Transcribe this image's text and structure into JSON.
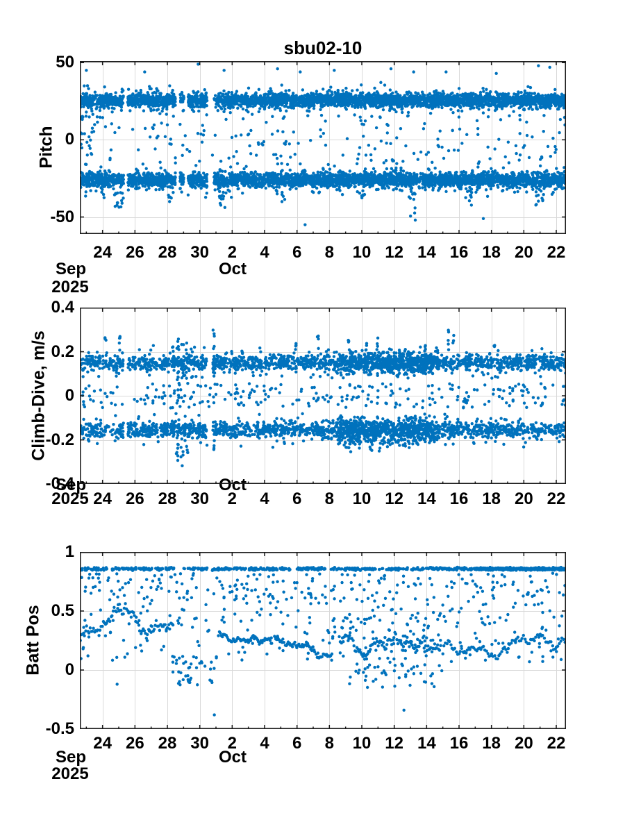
{
  "figure_title": "sbu02-10",
  "colors": {
    "marker": "#0072BD",
    "axis": "#1a1a1a",
    "grid": "#d9d9d9",
    "text": "#000000",
    "background": "#ffffff"
  },
  "x_axis": {
    "domain_days": [
      0.6,
      30.6
    ],
    "day0_date": "Sep 22",
    "major_ticks": [
      {
        "day": 2,
        "label": "24"
      },
      {
        "day": 4,
        "label": "26"
      },
      {
        "day": 6,
        "label": "28"
      },
      {
        "day": 8,
        "label": "30"
      },
      {
        "day": 10,
        "label": "2"
      },
      {
        "day": 12,
        "label": "4"
      },
      {
        "day": 14,
        "label": "6"
      },
      {
        "day": 16,
        "label": "8"
      },
      {
        "day": 18,
        "label": "10"
      },
      {
        "day": 20,
        "label": "12"
      },
      {
        "day": 22,
        "label": "14"
      },
      {
        "day": 24,
        "label": "16"
      },
      {
        "day": 26,
        "label": "18"
      },
      {
        "day": 28,
        "label": "20"
      },
      {
        "day": 30,
        "label": "22"
      }
    ],
    "minor_tick_days": [
      1,
      3,
      5,
      7,
      9,
      11,
      13,
      15,
      17,
      19,
      21,
      23,
      25,
      27,
      29
    ],
    "month_labels": [
      {
        "text": "Sep"
      },
      {
        "text": "Oct"
      }
    ],
    "year_label": "2025"
  },
  "chart_data": [
    {
      "type": "scatter",
      "title": "sbu02-10",
      "ylabel": "Pitch",
      "ylim": [
        -61,
        51
      ],
      "yticks": [
        {
          "v": 50,
          "label": "50"
        },
        {
          "v": 0,
          "label": "0"
        },
        {
          "v": -50,
          "label": "-50"
        }
      ],
      "grid": true,
      "marker_radius": 2.2,
      "series": [
        {
          "kind": "band",
          "seed": 11,
          "n": 2900,
          "x": [
            0.6,
            30.6
          ],
          "yc": 25.5,
          "ys": 2.1,
          "clip": [
            19,
            33
          ],
          "gaps": [
            [
              3.3,
              3.55
            ],
            [
              6.5,
              6.78
            ],
            [
              7.02,
              7.28
            ],
            [
              8.45,
              8.88
            ]
          ]
        },
        {
          "kind": "band",
          "seed": 12,
          "n": 650,
          "x": [
            0.6,
            30.6
          ],
          "yc": 25.5,
          "ys": 4.2,
          "clip": [
            13,
            41
          ],
          "gaps": [
            [
              3.3,
              3.55
            ],
            [
              6.5,
              6.78
            ],
            [
              7.02,
              7.28
            ],
            [
              8.45,
              8.88
            ]
          ]
        },
        {
          "kind": "band",
          "seed": 13,
          "n": 2900,
          "x": [
            0.6,
            30.6
          ],
          "yc": -26,
          "ys": 2.1,
          "clip": [
            -33.5,
            -19
          ],
          "gaps": [
            [
              3.3,
              3.55
            ],
            [
              6.5,
              6.78
            ],
            [
              7.02,
              7.28
            ],
            [
              8.45,
              8.88
            ]
          ]
        },
        {
          "kind": "band",
          "seed": 14,
          "n": 650,
          "x": [
            0.6,
            30.6
          ],
          "yc": -26,
          "ys": 4.2,
          "clip": [
            -42,
            -13
          ],
          "gaps": [
            [
              3.3,
              3.55
            ],
            [
              6.5,
              6.78
            ],
            [
              7.02,
              7.28
            ],
            [
              8.45,
              8.88
            ]
          ]
        },
        {
          "kind": "uniform",
          "seed": 15,
          "n": 190,
          "x": [
            0.6,
            30.6
          ],
          "y": [
            -16,
            16
          ]
        },
        {
          "kind": "uniform",
          "seed": 16,
          "n": 26,
          "x": [
            0.6,
            1.5
          ],
          "y": [
            -22,
            27
          ]
        },
        {
          "kind": "spikes",
          "seed": 17,
          "spikes": [
            {
              "x": 3.0,
              "n": 14,
              "xs": 0.3,
              "y": [
                -45,
                -33
              ]
            },
            {
              "x": 6.2,
              "n": 5,
              "xs": 0.15,
              "y": [
                -40,
                -34
              ]
            },
            {
              "x": 9.4,
              "n": 10,
              "xs": 0.25,
              "y": [
                -44,
                -34
              ]
            },
            {
              "x": 13.1,
              "n": 5,
              "xs": 0.15,
              "y": [
                -42,
                -34
              ]
            },
            {
              "x": 17.9,
              "n": 7,
              "xs": 0.2,
              "y": [
                -38,
                -32
              ]
            },
            {
              "x": 21.1,
              "n": 9,
              "xs": 0.2,
              "y": [
                -50,
                -33
              ]
            },
            {
              "x": 24.6,
              "n": 8,
              "xs": 0.3,
              "y": [
                -44,
                -33
              ]
            },
            {
              "x": 28.9,
              "n": 11,
              "xs": 0.35,
              "y": [
                -43,
                -32
              ]
            }
          ]
        },
        {
          "kind": "points",
          "seed": 18,
          "pts": [
            [
              1.0,
              45
            ],
            [
              4.6,
              44
            ],
            [
              7.9,
              49
            ],
            [
              9.5,
              45
            ],
            [
              12.8,
              46
            ],
            [
              14.2,
              44
            ],
            [
              16.3,
              45
            ],
            [
              19.8,
              46
            ],
            [
              21.2,
              44
            ],
            [
              23.2,
              44
            ],
            [
              26.3,
              43
            ],
            [
              28.9,
              48
            ],
            [
              29.6,
              47
            ],
            [
              14.5,
              -55
            ],
            [
              21.3,
              -52
            ],
            [
              25.5,
              -51
            ]
          ]
        }
      ]
    },
    {
      "type": "scatter",
      "title": "",
      "ylabel": "Climb-Dive, m/s",
      "ylim": [
        -0.4,
        0.4
      ],
      "yticks": [
        {
          "v": 0.4,
          "label": "0.4"
        },
        {
          "v": 0.2,
          "label": "0.2"
        },
        {
          "v": 0,
          "label": "0"
        },
        {
          "v": -0.2,
          "label": "-0.2"
        },
        {
          "v": -0.4,
          "label": "-0.4"
        }
      ],
      "grid": true,
      "marker_radius": 2.2,
      "series": [
        {
          "kind": "band",
          "seed": 21,
          "n": 1250,
          "x": [
            0.6,
            30.6
          ],
          "yc": 0.15,
          "ys": 0.017,
          "clip": [
            0.115,
            0.2
          ],
          "gaps": [
            [
              3.3,
              3.55
            ],
            [
              8.45,
              8.8
            ]
          ]
        },
        {
          "kind": "band",
          "seed": 22,
          "n": 320,
          "x": [
            0.6,
            30.6
          ],
          "yc": 0.145,
          "ys": 0.032,
          "clip": [
            0.08,
            0.23
          ],
          "gaps": [
            [
              3.3,
              3.55
            ],
            [
              8.45,
              8.8
            ]
          ]
        },
        {
          "kind": "band",
          "seed": 23,
          "n": 1250,
          "x": [
            0.6,
            30.6
          ],
          "yc": -0.155,
          "ys": 0.017,
          "clip": [
            -0.2,
            -0.115
          ],
          "gaps": [
            [
              3.3,
              3.55
            ],
            [
              8.45,
              8.8
            ]
          ]
        },
        {
          "kind": "band",
          "seed": 24,
          "n": 360,
          "x": [
            0.6,
            30.6
          ],
          "yc": -0.155,
          "ys": 0.032,
          "clip": [
            -0.25,
            -0.08
          ],
          "gaps": [
            [
              3.3,
              3.55
            ],
            [
              8.45,
              8.8
            ]
          ]
        },
        {
          "kind": "band",
          "seed": 25,
          "n": 420,
          "x": [
            16.5,
            22.8
          ],
          "yc": 0.15,
          "ys": 0.028,
          "clip": [
            0.09,
            0.22
          ],
          "gaps": []
        },
        {
          "kind": "band",
          "seed": 26,
          "n": 460,
          "x": [
            16.5,
            22.8
          ],
          "yc": -0.16,
          "ys": 0.032,
          "clip": [
            -0.26,
            -0.09
          ],
          "gaps": []
        },
        {
          "kind": "uniform",
          "seed": 27,
          "n": 260,
          "x": [
            0.6,
            30.6
          ],
          "y": [
            -0.055,
            0.055
          ]
        },
        {
          "kind": "spikes",
          "seed": 28,
          "spikes": [
            {
              "x": 2.2,
              "n": 3,
              "xs": 0.05,
              "y": [
                0.24,
                0.27
              ]
            },
            {
              "x": 3.05,
              "n": 4,
              "xs": 0.05,
              "y": [
                0.22,
                0.285
              ]
            },
            {
              "x": 6.35,
              "n": 9,
              "xs": 0.08,
              "y": [
                0.05,
                0.26
              ]
            },
            {
              "x": 6.65,
              "n": 11,
              "xs": 0.08,
              "y": [
                0.05,
                0.27
              ]
            },
            {
              "x": 6.95,
              "n": 9,
              "xs": 0.07,
              "y": [
                0.04,
                0.25
              ]
            },
            {
              "x": 7.2,
              "n": 7,
              "xs": 0.06,
              "y": [
                0.05,
                0.24
              ]
            },
            {
              "x": 7.5,
              "n": 6,
              "xs": 0.06,
              "y": [
                0.08,
                0.22
              ]
            },
            {
              "x": 8.85,
              "n": 12,
              "xs": 0.05,
              "y": [
                0.05,
                0.3
              ]
            },
            {
              "x": 10.6,
              "n": 3,
              "xs": 0.04,
              "y": [
                0.18,
                0.23
              ]
            },
            {
              "x": 13.9,
              "n": 4,
              "xs": 0.04,
              "y": [
                0.2,
                0.25
              ]
            },
            {
              "x": 15.3,
              "n": 5,
              "xs": 0.05,
              "y": [
                0.18,
                0.28
              ]
            },
            {
              "x": 17.2,
              "n": 4,
              "xs": 0.04,
              "y": [
                0.2,
                0.26
              ]
            },
            {
              "x": 18.3,
              "n": 3,
              "xs": 0.04,
              "y": [
                0.2,
                0.24
              ]
            },
            {
              "x": 18.95,
              "n": 5,
              "xs": 0.05,
              "y": [
                0.18,
                0.27
              ]
            },
            {
              "x": 20.3,
              "n": 4,
              "xs": 0.05,
              "y": [
                0.18,
                0.25
              ]
            },
            {
              "x": 21.9,
              "n": 4,
              "xs": 0.05,
              "y": [
                0.19,
                0.24
              ]
            },
            {
              "x": 23.35,
              "n": 5,
              "xs": 0.05,
              "y": [
                0.2,
                0.3
              ]
            },
            {
              "x": 23.65,
              "n": 3,
              "xs": 0.04,
              "y": [
                0.24,
                0.29
              ]
            },
            {
              "x": 26.2,
              "n": 3,
              "xs": 0.04,
              "y": [
                0.18,
                0.24
              ]
            },
            {
              "x": 6.6,
              "n": 6,
              "xs": 0.07,
              "y": [
                -0.3,
                -0.22
              ]
            },
            {
              "x": 6.9,
              "n": 5,
              "xs": 0.07,
              "y": [
                -0.33,
                -0.22
              ]
            },
            {
              "x": 7.2,
              "n": 4,
              "xs": 0.06,
              "y": [
                -0.28,
                -0.21
              ]
            },
            {
              "x": 8.85,
              "n": 4,
              "xs": 0.05,
              "y": [
                -0.26,
                -0.2
              ]
            },
            {
              "x": 17.3,
              "n": 4,
              "xs": 0.05,
              "y": [
                -0.27,
                -0.21
              ]
            },
            {
              "x": 18.6,
              "n": 3,
              "xs": 0.05,
              "y": [
                -0.25,
                -0.21
              ]
            },
            {
              "x": 19.1,
              "n": 3,
              "xs": 0.05,
              "y": [
                -0.26,
                -0.2
              ]
            },
            {
              "x": 20.9,
              "n": 3,
              "xs": 0.05,
              "y": [
                -0.24,
                -0.2
              ]
            }
          ]
        }
      ]
    },
    {
      "type": "scatter",
      "title": "",
      "ylabel": "Batt Pos",
      "ylim": [
        -0.5,
        1
      ],
      "yticks": [
        {
          "v": 1,
          "label": "1"
        },
        {
          "v": 0.5,
          "label": "0.5"
        },
        {
          "v": 0,
          "label": "0"
        },
        {
          "v": -0.5,
          "label": "-0.5"
        }
      ],
      "grid": true,
      "marker_radius": 2.2,
      "series": [
        {
          "kind": "band",
          "seed": 31,
          "n": 620,
          "x": [
            0.6,
            30.6
          ],
          "yc": 0.857,
          "ys": 0.006,
          "clip": [
            0.843,
            0.871
          ],
          "gaps": [
            [
              2.35,
              2.55
            ],
            [
              6.5,
              6.9
            ],
            [
              8.45,
              8.75
            ],
            [
              13.6,
              13.8
            ]
          ]
        },
        {
          "kind": "band",
          "seed": 32,
          "n": 380,
          "x": [
            25.0,
            30.6
          ],
          "yc": 0.857,
          "ys": 0.005,
          "clip": [
            0.845,
            0.87
          ],
          "gaps": []
        },
        {
          "kind": "uniform",
          "seed": 33,
          "n": 240,
          "x": [
            0.6,
            30.6
          ],
          "y": [
            0.55,
            0.82
          ]
        },
        {
          "kind": "uniform",
          "seed": 34,
          "n": 210,
          "x": [
            0.6,
            30.6
          ],
          "y": [
            0.07,
            0.55
          ]
        },
        {
          "kind": "walk",
          "seed": 35,
          "n": 85,
          "x": [
            0.6,
            6.4
          ],
          "y0": 0.3,
          "step": 0.05,
          "clampY": [
            0.05,
            0.66
          ]
        },
        {
          "kind": "walk",
          "seed": 36,
          "n": 55,
          "x": [
            9.2,
            12.5
          ],
          "y0": 0.33,
          "step": 0.025,
          "clampY": [
            0.15,
            0.5
          ]
        },
        {
          "kind": "walk",
          "seed": 37,
          "n": 55,
          "x": [
            12.6,
            16.2
          ],
          "y0": 0.3,
          "step": 0.03,
          "clampY": [
            0.1,
            0.55
          ]
        },
        {
          "kind": "walk",
          "seed": 38,
          "n": 105,
          "x": [
            16.6,
            22.9
          ],
          "y0": 0.25,
          "step": 0.05,
          "clampY": [
            -0.1,
            0.62
          ]
        },
        {
          "kind": "walk",
          "seed": 39,
          "n": 85,
          "x": [
            23.3,
            30.5
          ],
          "y0": 0.25,
          "step": 0.035,
          "clampY": [
            0.07,
            0.5
          ]
        },
        {
          "kind": "uniform",
          "seed": 40,
          "n": 60,
          "x": [
            16.5,
            23.0
          ],
          "y": [
            -0.05,
            0.62
          ]
        },
        {
          "kind": "uniform",
          "seed": 41,
          "n": 40,
          "x": [
            6.3,
            9.0
          ],
          "y": [
            -0.13,
            0.12
          ]
        },
        {
          "kind": "uniform",
          "seed": 42,
          "n": 30,
          "x": [
            17.0,
            22.5
          ],
          "y": [
            -0.15,
            0.05
          ]
        },
        {
          "kind": "points",
          "seed": 43,
          "pts": [
            [
              8.9,
              -0.38
            ],
            [
              20.6,
              -0.34
            ],
            [
              2.9,
              -0.12
            ],
            [
              14.0,
              0.74
            ],
            [
              1.1,
              0.12
            ],
            [
              0.8,
              0.18
            ]
          ]
        }
      ]
    }
  ]
}
